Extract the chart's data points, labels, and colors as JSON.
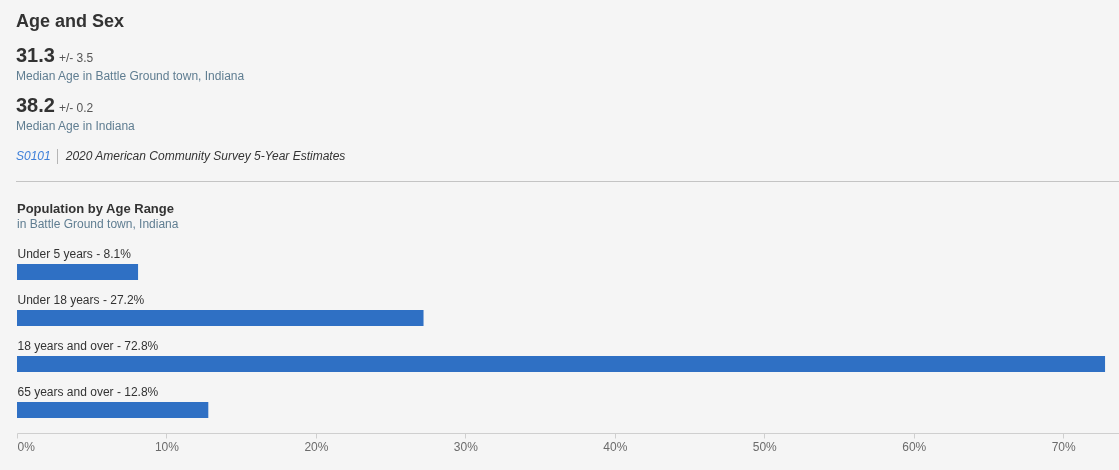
{
  "chart_data": [
    {
      "type": "other",
      "title": "Age and Sex",
      "annotations": [
        "31.3",
        "+/- 3.5",
        "Median Age in Battle Ground town, Indiana",
        "38.2",
        "+/- 0.2",
        "Median Age in Indiana",
        "S0101",
        "2020 American Community Survey 5-Year Estimates"
      ]
    },
    {
      "type": "bar",
      "orientation": "horizontal",
      "title": "Population by Age Range",
      "subtitle": "in Battle Ground town, Indiana",
      "categories": [
        "Under 5 years - 8.1%",
        "Under 18 years - 27.2%",
        "18 years and over - 72.8%",
        "65 years and over - 12.8%"
      ],
      "values": [
        8.1,
        27.2,
        72.8,
        12.8
      ],
      "color": "#2f70c4",
      "xlim": [
        0,
        73.8
      ],
      "xticks": [
        {
          "value": 0,
          "label": "0%"
        },
        {
          "value": 10,
          "label": "10%"
        },
        {
          "value": 20,
          "label": "20%"
        },
        {
          "value": 30,
          "label": "30%"
        },
        {
          "value": 40,
          "label": "40%"
        },
        {
          "value": 50,
          "label": "50%"
        },
        {
          "value": 60,
          "label": "60%"
        },
        {
          "value": 70,
          "label": "70%"
        }
      ],
      "grid": false
    }
  ]
}
